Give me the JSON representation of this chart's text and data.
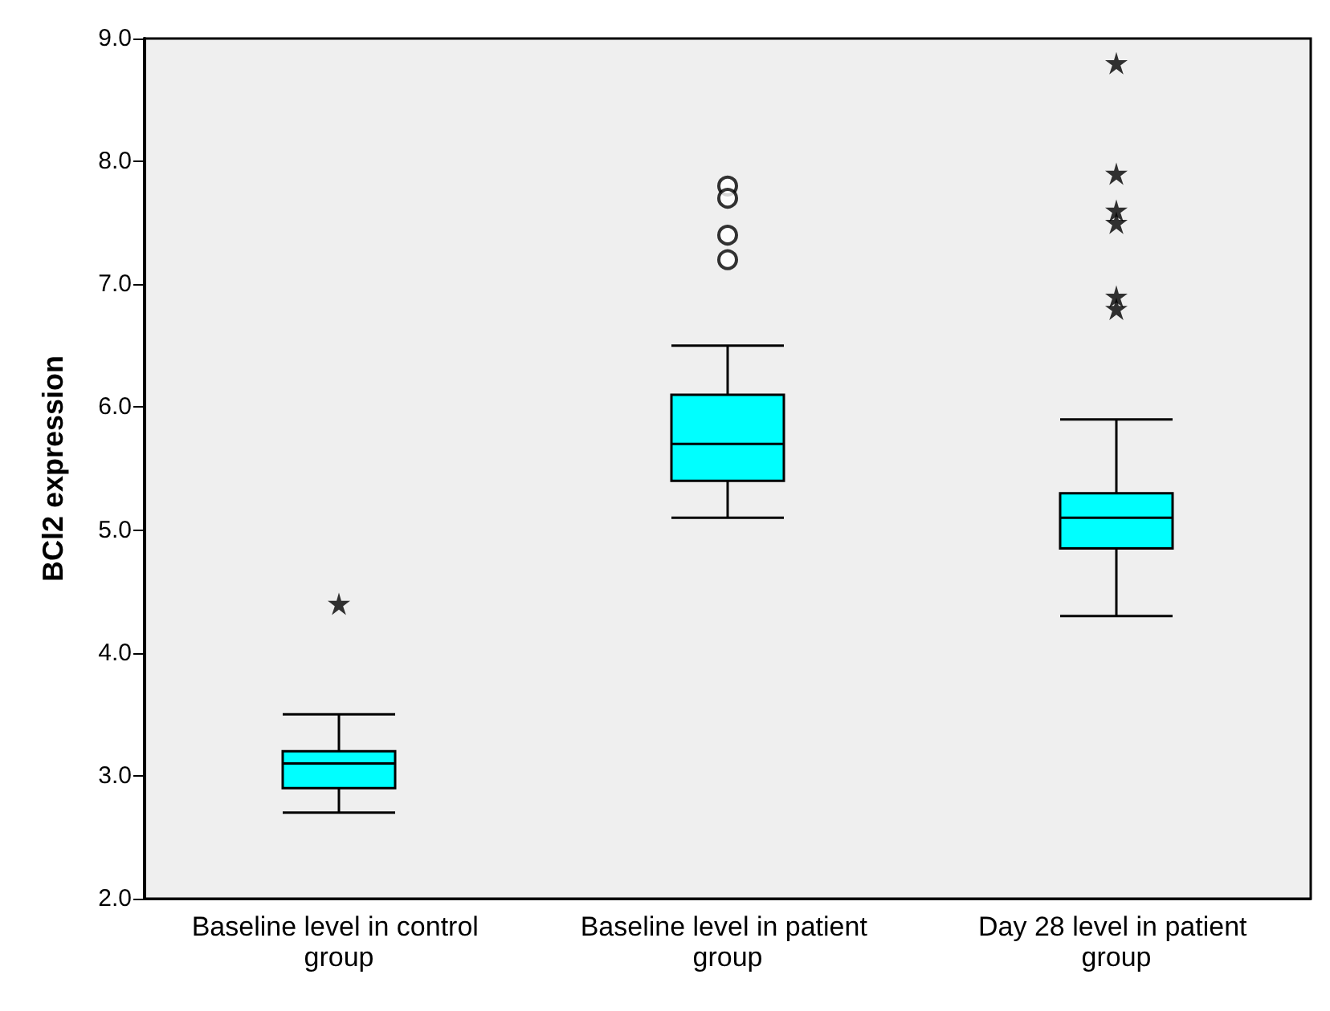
{
  "chart_data": {
    "type": "box",
    "ylabel": "BCl2 expression",
    "categories": [
      "Baseline level in control group",
      "Baseline level in patient group",
      "Day 28 level in patient group"
    ],
    "color": "#00ffff",
    "boxes": [
      {
        "low": 2.7,
        "q1": 2.9,
        "median": 3.1,
        "q3": 3.2,
        "high": 3.5
      },
      {
        "low": 5.1,
        "q1": 5.4,
        "median": 5.7,
        "q3": 6.1,
        "high": 6.5
      },
      {
        "low": 4.3,
        "q1": 4.85,
        "median": 5.1,
        "q3": 5.3,
        "high": 5.9
      }
    ],
    "series": [
      {
        "type": "scatter",
        "marker": "star",
        "color": "#000000",
        "x": [
          "Baseline level in control group",
          "Day 28 level in patient group",
          "Day 28 level in patient group",
          "Day 28 level in patient group",
          "Day 28 level in patient group",
          "Day 28 level in patient group",
          "Day 28 level in patient group"
        ],
        "values": [
          4.4,
          8.8,
          7.9,
          7.6,
          7.5,
          6.9,
          6.8
        ]
      },
      {
        "type": "scatter",
        "marker": "circle",
        "color": "#000000",
        "x": [
          "Baseline level in patient group",
          "Baseline level in patient group",
          "Baseline level in patient group",
          "Baseline level in patient group"
        ],
        "values": [
          7.8,
          7.7,
          7.4,
          7.2
        ]
      }
    ],
    "ylim": [
      2,
      9
    ],
    "yticks": [
      {
        "value": 2,
        "label": "2.0"
      },
      {
        "value": 3,
        "label": "3.0"
      },
      {
        "value": 4,
        "label": "4.0"
      },
      {
        "value": 5,
        "label": "5.0"
      },
      {
        "value": 6,
        "label": "6.0"
      },
      {
        "value": 7,
        "label": "7.0"
      },
      {
        "value": 8,
        "label": "8.0"
      },
      {
        "value": 9,
        "label": "9.0"
      }
    ],
    "grid": false
  }
}
